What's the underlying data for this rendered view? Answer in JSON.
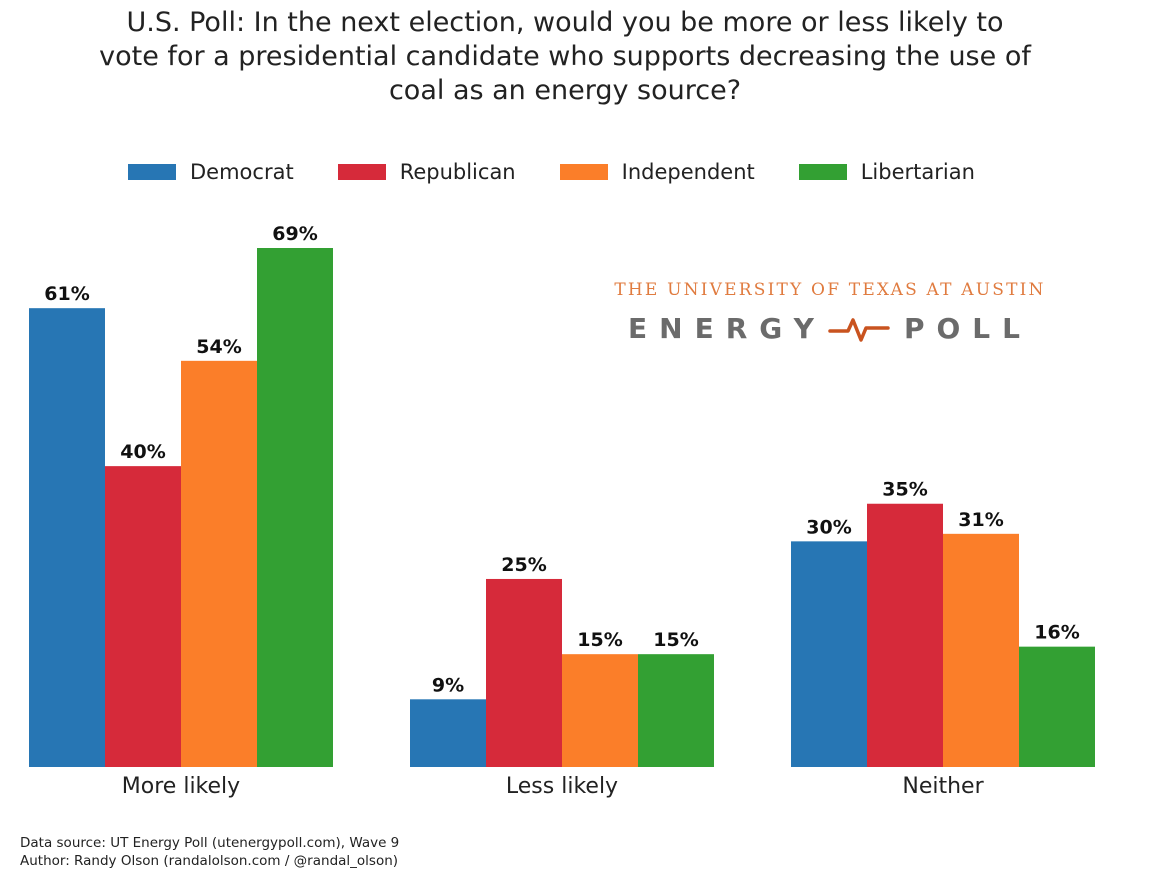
{
  "chart_data": {
    "type": "bar",
    "title": "U.S. Poll: In the next election, would you be more or less likely to vote for a presidential candidate who supports decreasing the use of coal as an energy source?",
    "title_lines": [
      "U.S. Poll: In the next election, would you be more or less likely to",
      "vote for a presidential candidate who supports decreasing the use of",
      "coal as an energy source?"
    ],
    "categories": [
      "More likely",
      "Less likely",
      "Neither"
    ],
    "series": [
      {
        "name": "Democrat",
        "color": "#2776b4",
        "values": [
          61,
          9,
          30
        ]
      },
      {
        "name": "Republican",
        "color": "#d62a3a",
        "values": [
          40,
          25,
          35
        ]
      },
      {
        "name": "Independent",
        "color": "#fb7e29",
        "values": [
          54,
          15,
          31
        ]
      },
      {
        "name": "Libertarian",
        "color": "#33a033",
        "values": [
          69,
          15,
          16
        ]
      }
    ],
    "value_suffix": "%",
    "xlabel": "",
    "ylabel": "",
    "ylim": [
      0,
      69
    ],
    "grid": false,
    "legend_position": "top-center"
  },
  "logo": {
    "line1": "THE UNIVERSITY OF TEXAS AT AUSTIN",
    "line2_left": "ENERGY",
    "line2_right": "POLL",
    "icon": "heartbeat-line-icon"
  },
  "footer": {
    "source": "Data source: UT Energy Poll (utenergypoll.com), Wave 9",
    "author": "Author: Randy Olson (randalolson.com / @randal_olson)"
  }
}
